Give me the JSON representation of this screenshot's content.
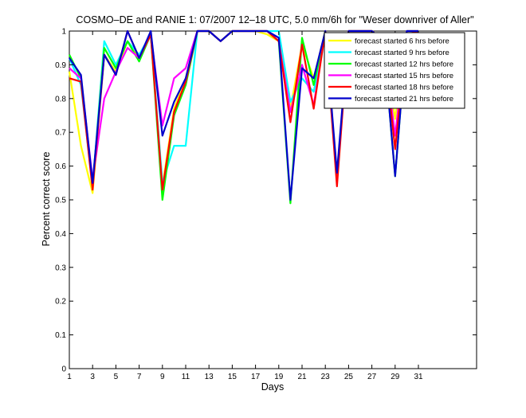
{
  "chart_data": {
    "type": "line",
    "title": "COSMO–DE and RANIE 1: 07/2007 12–18 UTC, 5.0 mm/6h for \"Weser downriver of Aller\"",
    "xlabel": "Days",
    "ylabel": "Percent correct score",
    "xlim": [
      1,
      36
    ],
    "ylim": [
      0,
      1
    ],
    "grid": false,
    "legend_position": "top-right",
    "x_ticks": [
      1,
      3,
      5,
      7,
      9,
      11,
      13,
      15,
      17,
      19,
      21,
      23,
      25,
      27,
      29,
      31
    ],
    "y_ticks": [
      0,
      0.1,
      0.2,
      0.3,
      0.4,
      0.5,
      0.6,
      0.7,
      0.8,
      0.9,
      1
    ],
    "x": [
      1,
      2,
      3,
      4,
      5,
      6,
      7,
      8,
      9,
      10,
      11,
      12,
      13,
      14,
      15,
      16,
      17,
      18,
      19,
      20,
      21,
      22,
      23,
      24,
      25,
      26,
      27,
      28,
      29,
      30,
      31
    ],
    "series": [
      {
        "name": "forecast started 6 hrs before",
        "color": "#ffff00",
        "values": [
          0.88,
          0.66,
          0.52,
          0.93,
          0.88,
          0.97,
          0.92,
          0.99,
          0.54,
          0.77,
          0.86,
          1.0,
          1.0,
          0.97,
          1.0,
          1.0,
          1.0,
          0.99,
          0.97,
          0.77,
          0.96,
          0.86,
          1.0,
          0.55,
          1.0,
          1.0,
          1.0,
          0.96,
          0.74,
          1.0,
          1.0
        ]
      },
      {
        "name": "forecast started 9 hrs before",
        "color": "#00ffff",
        "values": [
          0.92,
          0.84,
          0.54,
          0.97,
          0.9,
          0.97,
          0.93,
          0.99,
          0.55,
          0.66,
          0.66,
          1.0,
          1.0,
          0.97,
          1.0,
          1.0,
          1.0,
          1.0,
          1.0,
          0.79,
          0.86,
          0.82,
          1.0,
          0.56,
          1.0,
          1.0,
          1.0,
          0.97,
          0.79,
          0.99,
          1.0
        ]
      },
      {
        "name": "forecast started 12 hrs before",
        "color": "#00ff00",
        "values": [
          0.93,
          0.86,
          0.54,
          0.95,
          0.89,
          0.97,
          0.91,
          0.99,
          0.5,
          0.75,
          0.84,
          1.0,
          1.0,
          0.97,
          1.0,
          1.0,
          1.0,
          1.0,
          0.97,
          0.49,
          0.98,
          0.84,
          1.0,
          0.56,
          1.0,
          1.0,
          1.0,
          0.97,
          0.57,
          1.0,
          1.0
        ]
      },
      {
        "name": "forecast started 15 hrs before",
        "color": "#ff00ff",
        "values": [
          0.89,
          0.86,
          0.56,
          0.8,
          0.88,
          0.95,
          0.92,
          0.99,
          0.72,
          0.86,
          0.89,
          1.0,
          1.0,
          0.97,
          1.0,
          1.0,
          1.0,
          1.0,
          0.97,
          0.76,
          0.9,
          0.78,
          1.0,
          0.56,
          1.0,
          1.0,
          1.0,
          0.97,
          0.69,
          1.0,
          1.0
        ]
      },
      {
        "name": "forecast started 18 hrs before",
        "color": "#ff0000",
        "values": [
          0.86,
          0.85,
          0.53,
          0.93,
          0.87,
          1.0,
          0.92,
          0.99,
          0.53,
          0.76,
          0.85,
          1.0,
          1.0,
          0.97,
          1.0,
          1.0,
          1.0,
          1.0,
          0.97,
          0.73,
          0.96,
          0.77,
          1.0,
          0.54,
          1.0,
          1.0,
          1.0,
          0.97,
          0.65,
          0.99,
          1.0
        ]
      },
      {
        "name": "forecast started 21 hrs before",
        "color": "#0000cc",
        "values": [
          0.92,
          0.87,
          0.55,
          0.93,
          0.87,
          1.0,
          0.92,
          1.0,
          0.69,
          0.79,
          0.86,
          1.0,
          1.0,
          0.97,
          1.0,
          1.0,
          1.0,
          1.0,
          0.98,
          0.5,
          0.89,
          0.86,
          1.0,
          0.58,
          1.0,
          1.0,
          1.0,
          0.97,
          0.57,
          1.0,
          1.0
        ]
      }
    ]
  }
}
